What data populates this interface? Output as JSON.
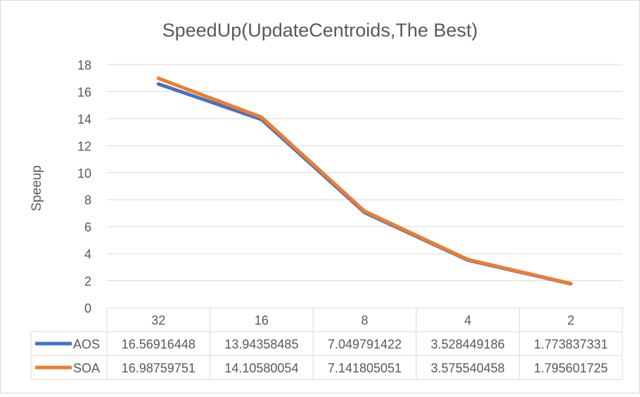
{
  "chart_data": {
    "type": "line",
    "title": "SpeedUp(UpdateCentroids,The Best)",
    "xlabel": "",
    "ylabel": "Speeup",
    "ylim": [
      0,
      18
    ],
    "yticks": [
      "0",
      "2",
      "4",
      "6",
      "8",
      "10",
      "12",
      "14",
      "16",
      "18"
    ],
    "categories": [
      "32",
      "16",
      "8",
      "4",
      "2"
    ],
    "grid": true,
    "legend": "data-table",
    "series": [
      {
        "name": "AOS",
        "color": "#4472C4",
        "values": [
          16.56916448,
          13.94358485,
          7.049791422,
          3.528449186,
          1.773837331
        ],
        "labels": [
          "16.56916448",
          "13.94358485",
          "7.049791422",
          "3.528449186",
          "1.773837331"
        ]
      },
      {
        "name": "SOA",
        "color": "#ED7D31",
        "values": [
          16.98759751,
          14.10580054,
          7.141805051,
          3.575540458,
          1.795601725
        ],
        "labels": [
          "16.98759751",
          "14.10580054",
          "7.141805051",
          "3.575540458",
          "1.795601725"
        ]
      }
    ]
  }
}
